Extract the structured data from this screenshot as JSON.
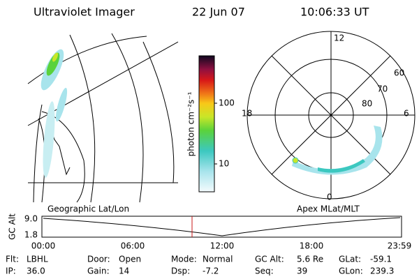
{
  "header": {
    "title": "Ultraviolet Imager",
    "date": "22 Jun 07",
    "time": "10:06:33 UT"
  },
  "left_panel": {
    "label": "Geographic Lat/Lon"
  },
  "colorbar": {
    "label": "photon cm⁻²s⁻¹",
    "ticks": [
      "100",
      "10"
    ]
  },
  "polar_panel": {
    "label": "Apex MLat/MLT",
    "hours": [
      "12",
      "18",
      "6",
      "0"
    ],
    "latitudes": [
      "60",
      "70",
      "80"
    ]
  },
  "altitude_plot": {
    "ylabel": "GC Alt",
    "yticks": [
      "9.0",
      "1.8"
    ],
    "xticks": [
      "00:00",
      "06:00",
      "12:00",
      "18:00",
      "23:59"
    ]
  },
  "footer": {
    "rows": [
      [
        {
          "label": "Flt:",
          "value": "LBHL"
        },
        {
          "label": "Door:",
          "value": "Open"
        },
        {
          "label": "Mode:",
          "value": "Normal"
        },
        {
          "label": "GC Alt:",
          "value": "5.6 Re"
        },
        {
          "label": "GLat:",
          "value": "-59.1"
        }
      ],
      [
        {
          "label": "IP:",
          "value": "36.0"
        },
        {
          "label": "Gain:",
          "value": "14"
        },
        {
          "label": "Dsp:",
          "value": "-7.2"
        },
        {
          "label": "Seq:",
          "value": "39"
        },
        {
          "label": "GLon:",
          "value": "239.3"
        }
      ]
    ]
  }
}
